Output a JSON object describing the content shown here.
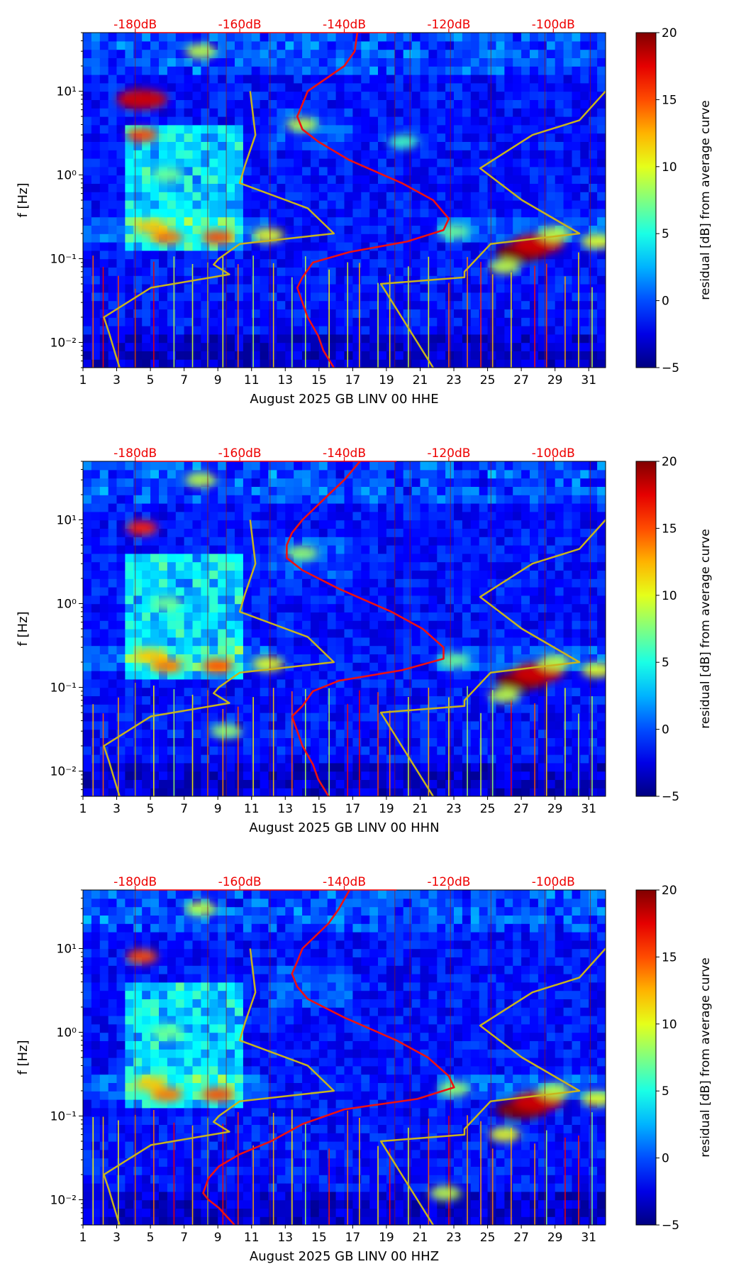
{
  "chart_data": [
    {
      "type": "heatmap",
      "channel": "HHE",
      "xlabel": "August 2025 GB LINV 00 HHE",
      "ylabel": "f [Hz]",
      "xticks": [
        "1",
        "3",
        "5",
        "7",
        "9",
        "11",
        "13",
        "15",
        "17",
        "19",
        "21",
        "23",
        "25",
        "27",
        "29",
        "31"
      ],
      "xrange": [
        1,
        32
      ],
      "yrange": [
        0.005,
        50
      ],
      "yscale": "log",
      "yticks": [
        {
          "value": 0.01,
          "label": "10⁻²"
        },
        {
          "value": 0.1,
          "label": "10⁻¹"
        },
        {
          "value": 1,
          "label": "10⁰"
        },
        {
          "value": 10,
          "label": "10¹"
        }
      ],
      "db_axis": {
        "labels": [
          "-180dB",
          "-160dB",
          "-140dB",
          "-120dB",
          "-100dB"
        ],
        "values": [
          -180,
          -160,
          -140,
          -120,
          -100
        ],
        "range": [
          -190,
          -90
        ]
      },
      "colorbar": {
        "label": "residual [dB] from average curve",
        "ticks": [
          "−5",
          "0",
          "5",
          "10",
          "15",
          "20"
        ],
        "range": [
          -5,
          20
        ]
      },
      "mean_curve_db": [
        [
          50,
          -137.5
        ],
        [
          30,
          -138
        ],
        [
          20,
          -140
        ],
        [
          10,
          -147
        ],
        [
          7,
          -148
        ],
        [
          5,
          -149
        ],
        [
          3.5,
          -148
        ],
        [
          2.5,
          -145
        ],
        [
          1.5,
          -139
        ],
        [
          0.8,
          -129
        ],
        [
          0.5,
          -123
        ],
        [
          0.3,
          -120
        ],
        [
          0.22,
          -121
        ],
        [
          0.16,
          -128
        ],
        [
          0.12,
          -139
        ],
        [
          0.09,
          -146
        ],
        [
          0.06,
          -148
        ],
        [
          0.045,
          -149
        ],
        [
          0.03,
          -148
        ],
        [
          0.02,
          -147
        ],
        [
          0.012,
          -145
        ],
        [
          0.008,
          -144
        ],
        [
          0.005,
          -142
        ]
      ],
      "nhnm_curve": [
        [
          10,
          -158
        ],
        [
          3,
          -157
        ],
        [
          1.3,
          -159
        ],
        [
          0.8,
          -160
        ],
        [
          0.4,
          -147
        ],
        [
          0.2,
          -142
        ],
        [
          0.15,
          -160
        ],
        [
          0.1,
          -164
        ],
        [
          0.085,
          -165
        ],
        [
          0.065,
          -162
        ],
        [
          0.045,
          -177
        ],
        [
          0.02,
          -186
        ],
        [
          0.013,
          -185
        ],
        [
          0.008,
          -184
        ],
        [
          0.005,
          -183
        ]
      ],
      "nlnm_curve": [
        [
          10,
          -90
        ],
        [
          4.5,
          -95
        ],
        [
          3,
          -104
        ],
        [
          1.2,
          -114
        ],
        [
          0.5,
          -106
        ],
        [
          0.2,
          -95
        ],
        [
          0.15,
          -112
        ],
        [
          0.07,
          -117
        ],
        [
          0.06,
          -117
        ],
        [
          0.05,
          -133
        ],
        [
          0.005,
          -123
        ]
      ],
      "hotspots": [
        {
          "t": 4.5,
          "f": 8,
          "r": 18
        },
        {
          "t": 4.5,
          "f": 3,
          "r": 15
        },
        {
          "t": 6,
          "f": 0.18,
          "r": 14
        },
        {
          "t": 9,
          "f": 0.18,
          "r": 15
        },
        {
          "t": 5,
          "f": 0.24,
          "r": 12
        },
        {
          "t": 12,
          "f": 0.19,
          "r": 10
        },
        {
          "t": 27,
          "f": 0.12,
          "r": 20
        },
        {
          "t": 28,
          "f": 0.15,
          "r": 18
        },
        {
          "t": 26,
          "f": 0.08,
          "r": 9
        },
        {
          "t": 31.5,
          "f": 0.16,
          "r": 10
        },
        {
          "t": 29,
          "f": 0.2,
          "r": 9
        },
        {
          "t": 14,
          "f": 4,
          "r": 9
        },
        {
          "t": 20,
          "f": 2.5,
          "r": 6
        },
        {
          "t": 23,
          "f": 0.21,
          "r": 7
        },
        {
          "t": 6,
          "f": 1,
          "r": 7
        },
        {
          "t": 8,
          "f": 30,
          "r": 9
        }
      ],
      "event_days": [
        1.6,
        2.2,
        3.1,
        4.1,
        5.2,
        6.4,
        7.5,
        8.4,
        9.3,
        10.2,
        11.1,
        12.3,
        13.4,
        14.2,
        15.6,
        16.7,
        17.4,
        18.5,
        19.2,
        20.3,
        21.5,
        22.7,
        23.8,
        24.6,
        25.3,
        26.4,
        27.8,
        28.5,
        29.6,
        30.4,
        31.2
      ]
    },
    {
      "type": "heatmap",
      "channel": "HHN",
      "xlabel": "August 2025 GB LINV 00 HHN",
      "ylabel": "f [Hz]",
      "xticks": [
        "1",
        "3",
        "5",
        "7",
        "9",
        "11",
        "13",
        "15",
        "17",
        "19",
        "21",
        "23",
        "25",
        "27",
        "29",
        "31"
      ],
      "xrange": [
        1,
        32
      ],
      "yrange": [
        0.005,
        50
      ],
      "yscale": "log",
      "yticks": [
        {
          "value": 0.01,
          "label": "10⁻²"
        },
        {
          "value": 0.1,
          "label": "10⁻¹"
        },
        {
          "value": 1,
          "label": "10⁰"
        },
        {
          "value": 10,
          "label": "10¹"
        }
      ],
      "db_axis": {
        "labels": [
          "-180dB",
          "-160dB",
          "-140dB",
          "-120dB",
          "-100dB"
        ],
        "values": [
          -180,
          -160,
          -140,
          -120,
          -100
        ],
        "range": [
          -190,
          -90
        ]
      },
      "colorbar": {
        "label": "residual [dB] from average curve",
        "ticks": [
          "−5",
          "0",
          "5",
          "10",
          "15",
          "20"
        ],
        "range": [
          -5,
          20
        ]
      },
      "mean_curve_db": [
        [
          50,
          -137
        ],
        [
          30,
          -140
        ],
        [
          20,
          -143
        ],
        [
          10,
          -148
        ],
        [
          7,
          -150
        ],
        [
          5,
          -151
        ],
        [
          3.5,
          -151
        ],
        [
          2.5,
          -148
        ],
        [
          1.5,
          -141
        ],
        [
          0.8,
          -131
        ],
        [
          0.5,
          -125
        ],
        [
          0.3,
          -121
        ],
        [
          0.22,
          -121
        ],
        [
          0.16,
          -129
        ],
        [
          0.12,
          -141
        ],
        [
          0.09,
          -146
        ],
        [
          0.06,
          -148
        ],
        [
          0.045,
          -150
        ],
        [
          0.03,
          -149
        ],
        [
          0.02,
          -148
        ],
        [
          0.012,
          -146
        ],
        [
          0.008,
          -145
        ],
        [
          0.005,
          -143
        ]
      ],
      "nhnm_curve": [
        [
          10,
          -158
        ],
        [
          3,
          -157
        ],
        [
          1.3,
          -159
        ],
        [
          0.8,
          -160
        ],
        [
          0.4,
          -147
        ],
        [
          0.2,
          -142
        ],
        [
          0.15,
          -160
        ],
        [
          0.1,
          -164
        ],
        [
          0.085,
          -165
        ],
        [
          0.065,
          -162
        ],
        [
          0.045,
          -177
        ],
        [
          0.02,
          -186
        ],
        [
          0.013,
          -185
        ],
        [
          0.008,
          -184
        ],
        [
          0.005,
          -183
        ]
      ],
      "nlnm_curve": [
        [
          10,
          -90
        ],
        [
          4.5,
          -95
        ],
        [
          3,
          -104
        ],
        [
          1.2,
          -114
        ],
        [
          0.5,
          -106
        ],
        [
          0.2,
          -95
        ],
        [
          0.15,
          -112
        ],
        [
          0.07,
          -117
        ],
        [
          0.06,
          -117
        ],
        [
          0.05,
          -133
        ],
        [
          0.005,
          -123
        ]
      ],
      "hotspots": [
        {
          "t": 4.5,
          "f": 8,
          "r": 16
        },
        {
          "t": 6,
          "f": 0.18,
          "r": 14
        },
        {
          "t": 9,
          "f": 0.18,
          "r": 15
        },
        {
          "t": 5,
          "f": 0.24,
          "r": 12
        },
        {
          "t": 12,
          "f": 0.19,
          "r": 10
        },
        {
          "t": 27,
          "f": 0.12,
          "r": 20
        },
        {
          "t": 28,
          "f": 0.15,
          "r": 18
        },
        {
          "t": 26,
          "f": 0.08,
          "r": 9
        },
        {
          "t": 31.5,
          "f": 0.16,
          "r": 10
        },
        {
          "t": 29,
          "f": 0.2,
          "r": 9
        },
        {
          "t": 14,
          "f": 4,
          "r": 8
        },
        {
          "t": 23,
          "f": 0.21,
          "r": 7
        },
        {
          "t": 6,
          "f": 1,
          "r": 7
        },
        {
          "t": 8,
          "f": 30,
          "r": 9
        },
        {
          "t": 9.5,
          "f": 0.03,
          "r": 8
        }
      ],
      "event_days": [
        1.6,
        2.2,
        3.1,
        4.1,
        5.2,
        6.4,
        7.5,
        8.4,
        9.3,
        10.2,
        11.1,
        12.3,
        13.4,
        14.2,
        15.6,
        16.7,
        17.4,
        18.5,
        19.2,
        20.3,
        21.5,
        22.7,
        23.8,
        24.6,
        25.3,
        26.4,
        27.8,
        28.5,
        29.6,
        30.4,
        31.2
      ]
    },
    {
      "type": "heatmap",
      "channel": "HHZ",
      "xlabel": "August 2025 GB LINV 00 HHZ",
      "ylabel": "f [Hz]",
      "xticks": [
        "1",
        "3",
        "5",
        "7",
        "9",
        "11",
        "13",
        "15",
        "17",
        "19",
        "21",
        "23",
        "25",
        "27",
        "29",
        "31"
      ],
      "xrange": [
        1,
        32
      ],
      "yrange": [
        0.005,
        50
      ],
      "yscale": "log",
      "yticks": [
        {
          "value": 0.01,
          "label": "10⁻²"
        },
        {
          "value": 0.1,
          "label": "10⁻¹"
        },
        {
          "value": 1,
          "label": "10⁰"
        },
        {
          "value": 10,
          "label": "10¹"
        }
      ],
      "db_axis": {
        "labels": [
          "-180dB",
          "-160dB",
          "-140dB",
          "-120dB",
          "-100dB"
        ],
        "values": [
          -180,
          -160,
          -140,
          -120,
          -100
        ],
        "range": [
          -190,
          -90
        ]
      },
      "colorbar": {
        "label": "residual [dB] from average curve",
        "ticks": [
          "−5",
          "0",
          "5",
          "10",
          "15",
          "20"
        ],
        "range": [
          -5,
          20
        ]
      },
      "mean_curve_db": [
        [
          50,
          -139
        ],
        [
          30,
          -141
        ],
        [
          20,
          -143
        ],
        [
          10,
          -148
        ],
        [
          7,
          -149
        ],
        [
          5,
          -150
        ],
        [
          3.5,
          -149
        ],
        [
          2.5,
          -147
        ],
        [
          1.5,
          -140
        ],
        [
          0.8,
          -130
        ],
        [
          0.5,
          -124
        ],
        [
          0.3,
          -120
        ],
        [
          0.22,
          -119
        ],
        [
          0.16,
          -126
        ],
        [
          0.12,
          -140
        ],
        [
          0.08,
          -148
        ],
        [
          0.05,
          -154
        ],
        [
          0.035,
          -160
        ],
        [
          0.025,
          -164
        ],
        [
          0.018,
          -166
        ],
        [
          0.012,
          -167
        ],
        [
          0.01,
          -166
        ],
        [
          0.008,
          -164
        ],
        [
          0.005,
          -161
        ]
      ],
      "nhnm_curve": [
        [
          10,
          -158
        ],
        [
          3,
          -157
        ],
        [
          1.3,
          -159
        ],
        [
          0.8,
          -160
        ],
        [
          0.4,
          -147
        ],
        [
          0.2,
          -142
        ],
        [
          0.15,
          -160
        ],
        [
          0.1,
          -164
        ],
        [
          0.085,
          -165
        ],
        [
          0.065,
          -162
        ],
        [
          0.045,
          -177
        ],
        [
          0.02,
          -186
        ],
        [
          0.013,
          -185
        ],
        [
          0.008,
          -184
        ],
        [
          0.005,
          -183
        ]
      ],
      "nlnm_curve": [
        [
          10,
          -90
        ],
        [
          4.5,
          -95
        ],
        [
          3,
          -104
        ],
        [
          1.2,
          -114
        ],
        [
          0.5,
          -106
        ],
        [
          0.2,
          -95
        ],
        [
          0.15,
          -112
        ],
        [
          0.07,
          -117
        ],
        [
          0.06,
          -117
        ],
        [
          0.05,
          -133
        ],
        [
          0.005,
          -123
        ]
      ],
      "hotspots": [
        {
          "t": 4.5,
          "f": 8,
          "r": 15
        },
        {
          "t": 6,
          "f": 0.18,
          "r": 14
        },
        {
          "t": 9,
          "f": 0.18,
          "r": 15
        },
        {
          "t": 5,
          "f": 0.24,
          "r": 12
        },
        {
          "t": 27,
          "f": 0.12,
          "r": 20
        },
        {
          "t": 28,
          "f": 0.15,
          "r": 18
        },
        {
          "t": 26,
          "f": 0.06,
          "r": 10
        },
        {
          "t": 31.5,
          "f": 0.16,
          "r": 10
        },
        {
          "t": 29,
          "f": 0.2,
          "r": 9
        },
        {
          "t": 23,
          "f": 0.21,
          "r": 8
        },
        {
          "t": 22.5,
          "f": 0.012,
          "r": 9
        },
        {
          "t": 6,
          "f": 1,
          "r": 7
        },
        {
          "t": 8,
          "f": 30,
          "r": 9
        }
      ],
      "event_days": [
        1.6,
        2.2,
        3.1,
        4.1,
        5.2,
        6.4,
        7.5,
        8.4,
        9.3,
        10.2,
        11.1,
        12.3,
        13.4,
        14.2,
        15.6,
        16.7,
        17.4,
        18.5,
        19.2,
        20.3,
        21.5,
        22.7,
        23.8,
        24.6,
        25.3,
        26.4,
        27.8,
        28.5,
        29.6,
        30.4,
        31.2
      ]
    }
  ],
  "colors": {
    "mean_curve": "#ee1111",
    "noise_model": "#c8b41e",
    "db_text": "#ee0000",
    "day_line": "#8b1a1a"
  }
}
